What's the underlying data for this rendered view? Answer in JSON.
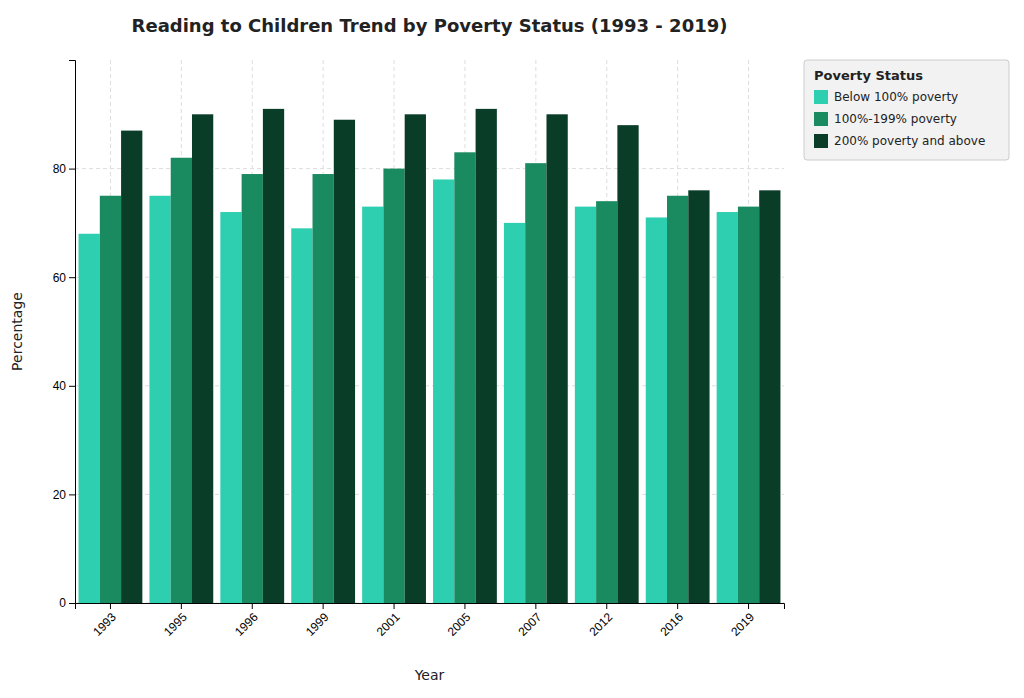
{
  "chart_data": {
    "type": "bar",
    "title": "Reading to Children Trend by Poverty Status (1993 - 2019)",
    "xlabel": "Year",
    "ylabel": "Percentage",
    "categories": [
      "1993",
      "1995",
      "1996",
      "1999",
      "2001",
      "2005",
      "2007",
      "2012",
      "2016",
      "2019"
    ],
    "series": [
      {
        "name": "Below 100% poverty",
        "color": "#2ecfb0",
        "values": [
          68,
          75,
          72,
          69,
          73,
          78,
          70,
          73,
          71,
          72
        ]
      },
      {
        "name": "100%-199% poverty",
        "color": "#1a8a60",
        "values": [
          75,
          82,
          79,
          79,
          80,
          83,
          81,
          74,
          75,
          73
        ]
      },
      {
        "name": "200% poverty and above",
        "color": "#0a3d28",
        "values": [
          87,
          90,
          91,
          89,
          90,
          91,
          90,
          88,
          76,
          76
        ]
      }
    ],
    "ylim": [
      0,
      100
    ],
    "yticks": [
      0,
      20,
      40,
      60,
      80
    ],
    "grid": true,
    "legend": "upper right",
    "legend_title": "Poverty Status"
  }
}
